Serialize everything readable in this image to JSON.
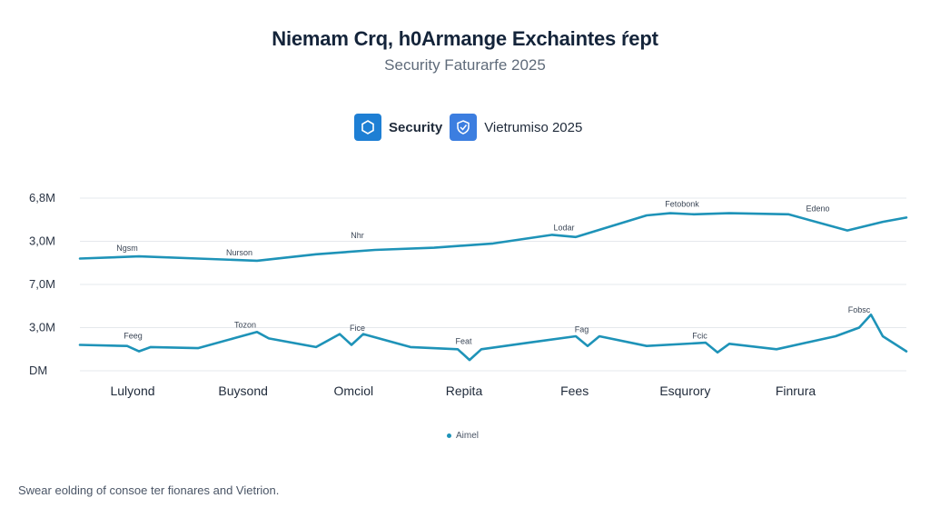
{
  "colors": {
    "line_color": "#1e93b8",
    "grid_color": "#e5e8ec",
    "title_color": "#14243a",
    "icon_security": "#1e7fd4",
    "icon_vietnam": "#3c7ee0"
  },
  "header": {
    "title": "Niemam Crq, h0Armange Exchaintes ŕept",
    "subtitle": "Security Faturarfe 2025",
    "badges": [
      {
        "icon": "hexagon-icon",
        "label": "Security"
      },
      {
        "icon": "shield-icon",
        "label": "Vietrumiso 2025"
      }
    ]
  },
  "chart_data": {
    "type": "line",
    "y_tick_labels": [
      "6,8M",
      "3,0M",
      "7,0M",
      "3,0M",
      "DM"
    ],
    "categories": [
      "Lulyond",
      "Buysond",
      "Omciol",
      "Repita",
      "Fees",
      "Esqurory",
      "Finrura"
    ],
    "grid": true,
    "legend_position": "bottom-center",
    "legend": [
      "Aimel"
    ],
    "series": [
      {
        "name": "Aimel",
        "x": [
          0,
          0.5,
          1,
          1.5,
          2,
          2.5,
          3,
          3.5,
          4,
          4.2,
          4.8,
          5,
          5.2,
          5.5,
          6,
          6.5,
          6.8,
          7
        ],
        "values": [
          5.2,
          5.3,
          5.2,
          5.1,
          5.4,
          5.6,
          5.7,
          5.9,
          6.3,
          6.2,
          7.2,
          7.3,
          7.25,
          7.3,
          7.25,
          6.5,
          6.9,
          7.1
        ]
      },
      {
        "name": "",
        "x": [
          0,
          0.4,
          0.5,
          0.6,
          1,
          1.3,
          1.5,
          1.6,
          2,
          2.2,
          2.3,
          2.4,
          2.8,
          3.2,
          3.3,
          3.4,
          3.8,
          4.2,
          4.3,
          4.4,
          4.8,
          5.3,
          5.4,
          5.5,
          5.9,
          6.4,
          6.6,
          6.7,
          6.8,
          7
        ],
        "values": [
          1.2,
          1.15,
          0.9,
          1.1,
          1.05,
          1.5,
          1.8,
          1.5,
          1.1,
          1.7,
          1.2,
          1.7,
          1.1,
          1.0,
          0.5,
          1.0,
          1.3,
          1.6,
          1.15,
          1.6,
          1.15,
          1.3,
          0.85,
          1.25,
          1.0,
          1.6,
          2.0,
          2.6,
          1.6,
          0.9
        ]
      }
    ],
    "annotations": [
      {
        "text": "Ngsm",
        "x": 0.4,
        "y": 5.55
      },
      {
        "text": "Nurson",
        "x": 1.35,
        "y": 5.35
      },
      {
        "text": "Nhr",
        "x": 2.35,
        "y": 6.15
      },
      {
        "text": "Lodar",
        "x": 4.1,
        "y": 6.5
      },
      {
        "text": "Fetobonk",
        "x": 5.1,
        "y": 7.6
      },
      {
        "text": "Edeno",
        "x": 6.25,
        "y": 7.4
      },
      {
        "text": "Feeg",
        "x": 0.45,
        "y": 1.5
      },
      {
        "text": "Tozon",
        "x": 1.4,
        "y": 2.0
      },
      {
        "text": "Fice",
        "x": 2.35,
        "y": 1.85
      },
      {
        "text": "Feat",
        "x": 3.25,
        "y": 1.25
      },
      {
        "text": "Fag",
        "x": 4.25,
        "y": 1.8
      },
      {
        "text": "Fcic",
        "x": 5.25,
        "y": 1.5
      },
      {
        "text": "Fobsc",
        "x": 6.6,
        "y": 2.7
      }
    ]
  },
  "footnote": "Swear eolding of consoe ter fionares and Vietrion."
}
